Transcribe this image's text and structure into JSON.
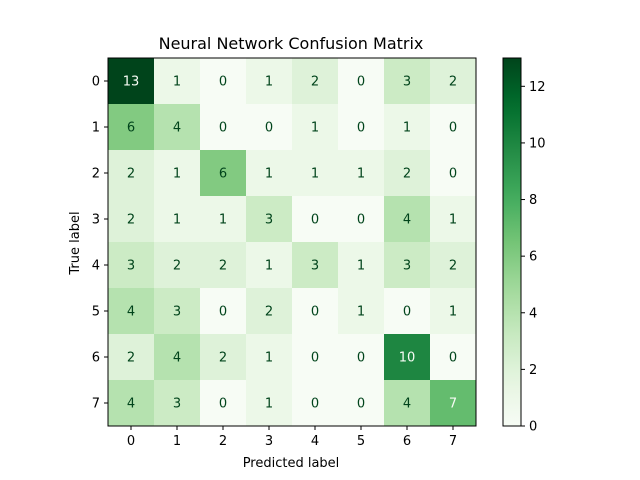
{
  "chart_data": {
    "type": "heatmap",
    "title": "Neural Network Confusion Matrix",
    "xlabel": "Predicted label",
    "ylabel": "True label",
    "x_categories": [
      "0",
      "1",
      "2",
      "3",
      "4",
      "5",
      "6",
      "7"
    ],
    "y_categories": [
      "0",
      "1",
      "2",
      "3",
      "4",
      "5",
      "6",
      "7"
    ],
    "matrix": [
      [
        13,
        1,
        0,
        1,
        2,
        0,
        3,
        2
      ],
      [
        6,
        4,
        0,
        0,
        1,
        0,
        1,
        0
      ],
      [
        2,
        1,
        6,
        1,
        1,
        1,
        2,
        0
      ],
      [
        2,
        1,
        1,
        3,
        0,
        0,
        4,
        1
      ],
      [
        3,
        2,
        2,
        1,
        3,
        1,
        3,
        2
      ],
      [
        4,
        3,
        0,
        2,
        0,
        1,
        0,
        1
      ],
      [
        2,
        4,
        2,
        1,
        0,
        0,
        10,
        0
      ],
      [
        4,
        3,
        0,
        1,
        0,
        0,
        4,
        7
      ]
    ],
    "colormap": "Greens",
    "vmin": 0,
    "vmax": 13,
    "colorbar_ticks": [
      "0",
      "2",
      "4",
      "6",
      "8",
      "10",
      "12"
    ],
    "grid": false
  }
}
